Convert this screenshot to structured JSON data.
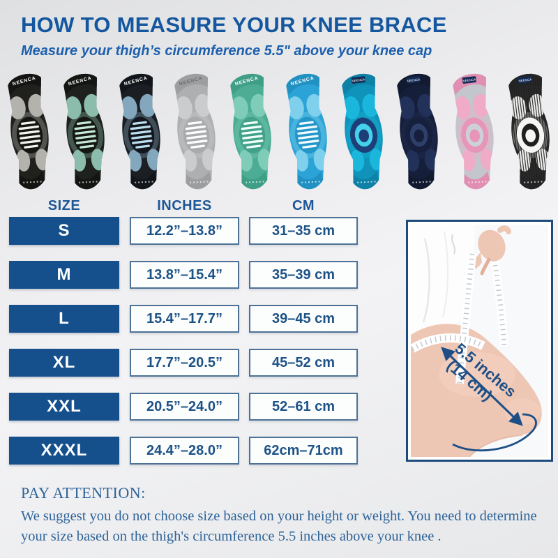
{
  "page": {
    "title": "HOW TO MEASURE YOUR KNEE BRACE",
    "subtitle": "Measure your thigh’s circumference 5.5\" above your knee cap"
  },
  "brand": "NEENCA",
  "products": [
    {
      "name": "black-gray-knit",
      "base": "#b3b2ac",
      "frame": "#20201d",
      "pad": "#151514",
      "stripe": "#f4f3ef",
      "cuff": "#141413",
      "type": "stripes"
    },
    {
      "name": "black-mint-knit",
      "base": "#8cbcab",
      "frame": "#1e211e",
      "pad": "#151713",
      "stripe": "#c5e8da",
      "cuff": "#141613",
      "type": "stripes"
    },
    {
      "name": "black-blue-knit",
      "base": "#83a7bd",
      "frame": "#1b1f24",
      "pad": "#13161c",
      "stripe": "#bcdff0",
      "cuff": "#12151a",
      "type": "stripes"
    },
    {
      "name": "light-gray",
      "base": "#cbccce",
      "frame": "#aeafb1",
      "pad": "#a9aaac",
      "stripe": "#fdfdfd",
      "cuff": "#9d9ea0",
      "type": "stripes"
    },
    {
      "name": "mint-green",
      "base": "#7fccb8",
      "frame": "#4cad94",
      "pad": "#41a189",
      "stripe": "#f2fffa",
      "cuff": "#3f9e86",
      "type": "stripes"
    },
    {
      "name": "sky-blue",
      "base": "#7ed0ec",
      "frame": "#2ba3d6",
      "pad": "#2496c8",
      "stripe": "#effbff",
      "cuff": "#2191c2",
      "type": "stripes"
    },
    {
      "name": "turquoise-navy",
      "base": "#1bb6dc",
      "frame": "#0f93ba",
      "pad": "#1d3f77",
      "stripe": "#45d0ec",
      "cuff": "#0e82a6",
      "type": "ring"
    },
    {
      "name": "navy",
      "base": "#223159",
      "frame": "#161f3a",
      "pad": "#161f3c",
      "stripe": "#2e3f6a",
      "cuff": "#121a30",
      "type": "ring"
    },
    {
      "name": "pink",
      "base": "#f0abc6",
      "frame": "#c3c6cd",
      "pad": "#e795b8",
      "stripe": "#ccd0d7",
      "cuff": "#e08fb2",
      "type": "ring"
    },
    {
      "name": "white-black-stripe",
      "base": "#ededeb",
      "frame": "#2a2a2a",
      "pad": "#f5f5f3",
      "stripe": "#1f1f1f",
      "cuff": "#242424",
      "type": "ring",
      "vstripes": true
    }
  ],
  "table": {
    "headers": [
      "SIZE",
      "INCHES",
      "CM"
    ],
    "rows": [
      {
        "size": "S",
        "inches": "12.2”–13.8”",
        "cm": "31–35 cm"
      },
      {
        "size": "M",
        "inches": "13.8”–15.4”",
        "cm": "35–39 cm"
      },
      {
        "size": "L",
        "inches": "15.4”–17.7”",
        "cm": "39–45 cm"
      },
      {
        "size": "XL",
        "inches": "17.7”–20.5”",
        "cm": "45–52 cm"
      },
      {
        "size": "XXL",
        "inches": "20.5”–24.0”",
        "cm": "52–61 cm"
      },
      {
        "size": "XXXL",
        "inches": "24.4”–28.0”",
        "cm": "62cm–71cm"
      }
    ]
  },
  "photo": {
    "annotation_line1": "5.5 inches",
    "annotation_line2": "(14 cm)"
  },
  "attention": {
    "heading": "PAY ATTENTION:",
    "body": "We suggest you do not choose size based on your height or weight. You need to determine your size based on the thigh's circumference 5.5 inches above your knee ."
  },
  "colors": {
    "title_blue": "#14579f",
    "table_blue": "#15508c",
    "value_text_blue": "#1d5287",
    "annotation_blue": "#1d4f86",
    "attention_blue": "#2e6399",
    "skin": "#eec6b4"
  }
}
